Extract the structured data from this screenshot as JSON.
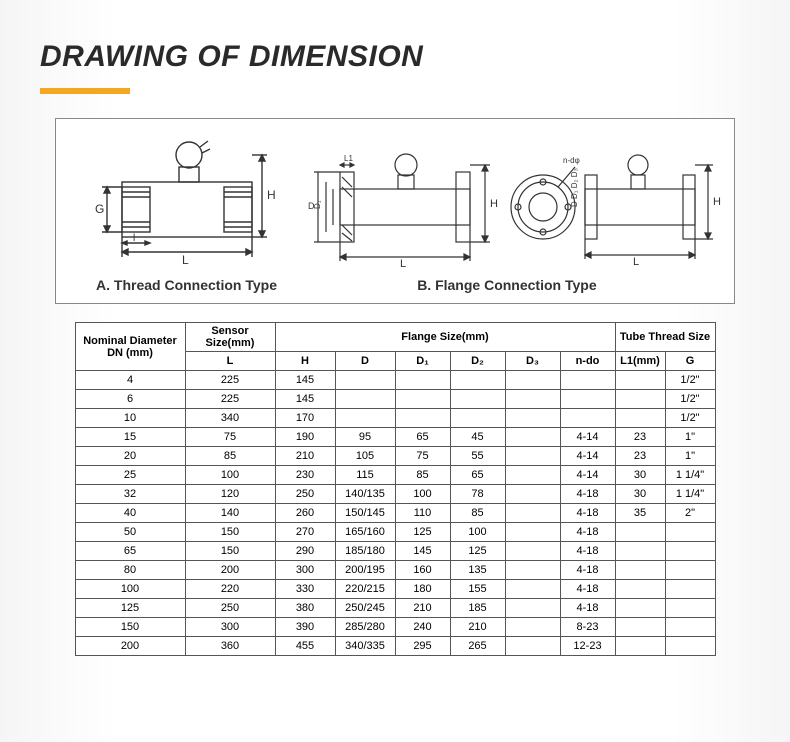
{
  "title": "DRAWING OF DIMENSION",
  "colors": {
    "accent": "#f5a623",
    "title_color": "#2a2a2a",
    "border": "#555555",
    "diagram_stroke": "#333333"
  },
  "captions": {
    "a": "A. Thread Connection Type",
    "b": "B. Flange Connection Type"
  },
  "table": {
    "header_groups": [
      {
        "label": "Nominal Diameter DN (mm)",
        "span": 1,
        "rowspan": 2
      },
      {
        "label": "Sensor Size(mm)",
        "span": 1
      },
      {
        "label": "Flange Size(mm)",
        "span": 6
      },
      {
        "label": "Tube Thread Size",
        "span": 2
      }
    ],
    "columns": [
      "L",
      "H",
      "D",
      "D₁",
      "D₂",
      "D₃",
      "n-do",
      "L1(mm)",
      "G"
    ],
    "rows": [
      {
        "dn": "4",
        "L": "225",
        "H": "145",
        "D": "",
        "D1": "",
        "D2": "",
        "D3": "",
        "ndo": "",
        "L1": "",
        "G": "1/2\""
      },
      {
        "dn": "6",
        "L": "225",
        "H": "145",
        "D": "",
        "D1": "",
        "D2": "",
        "D3": "",
        "ndo": "",
        "L1": "",
        "G": "1/2\""
      },
      {
        "dn": "10",
        "L": "340",
        "H": "170",
        "D": "",
        "D1": "",
        "D2": "",
        "D3": "",
        "ndo": "",
        "L1": "",
        "G": "1/2\""
      },
      {
        "dn": "15",
        "L": "75",
        "H": "190",
        "D": "95",
        "D1": "65",
        "D2": "45",
        "D3": "",
        "ndo": "4-14",
        "L1": "23",
        "G": "1\""
      },
      {
        "dn": "20",
        "L": "85",
        "H": "210",
        "D": "105",
        "D1": "75",
        "D2": "55",
        "D3": "",
        "ndo": "4-14",
        "L1": "23",
        "G": "1\""
      },
      {
        "dn": "25",
        "L": "100",
        "H": "230",
        "D": "115",
        "D1": "85",
        "D2": "65",
        "D3": "",
        "ndo": "4-14",
        "L1": "30",
        "G": "1 1/4\""
      },
      {
        "dn": "32",
        "L": "120",
        "H": "250",
        "D": "140/135",
        "D1": "100",
        "D2": "78",
        "D3": "",
        "ndo": "4-18",
        "L1": "30",
        "G": "1 1/4\""
      },
      {
        "dn": "40",
        "L": "140",
        "H": "260",
        "D": "150/145",
        "D1": "110",
        "D2": "85",
        "D3": "",
        "ndo": "4-18",
        "L1": "35",
        "G": "2\""
      },
      {
        "dn": "50",
        "L": "150",
        "H": "270",
        "D": "165/160",
        "D1": "125",
        "D2": "100",
        "D3": "",
        "ndo": "4-18",
        "L1": "",
        "G": ""
      },
      {
        "dn": "65",
        "L": "150",
        "H": "290",
        "D": "185/180",
        "D1": "145",
        "D2": "125",
        "D3": "",
        "ndo": "4-18",
        "L1": "",
        "G": ""
      },
      {
        "dn": "80",
        "L": "200",
        "H": "300",
        "D": "200/195",
        "D1": "160",
        "D2": "135",
        "D3": "",
        "ndo": "4-18",
        "L1": "",
        "G": ""
      },
      {
        "dn": "100",
        "L": "220",
        "H": "330",
        "D": "220/215",
        "D1": "180",
        "D2": "155",
        "D3": "",
        "ndo": "4-18",
        "L1": "",
        "G": ""
      },
      {
        "dn": "125",
        "L": "250",
        "H": "380",
        "D": "250/245",
        "D1": "210",
        "D2": "185",
        "D3": "",
        "ndo": "4-18",
        "L1": "",
        "G": ""
      },
      {
        "dn": "150",
        "L": "300",
        "H": "390",
        "D": "285/280",
        "D1": "240",
        "D2": "210",
        "D3": "",
        "ndo": "8-23",
        "L1": "",
        "G": ""
      },
      {
        "dn": "200",
        "L": "360",
        "H": "455",
        "D": "340/335",
        "D1": "295",
        "D2": "265",
        "D3": "",
        "ndo": "12-23",
        "L1": "",
        "G": ""
      }
    ]
  }
}
